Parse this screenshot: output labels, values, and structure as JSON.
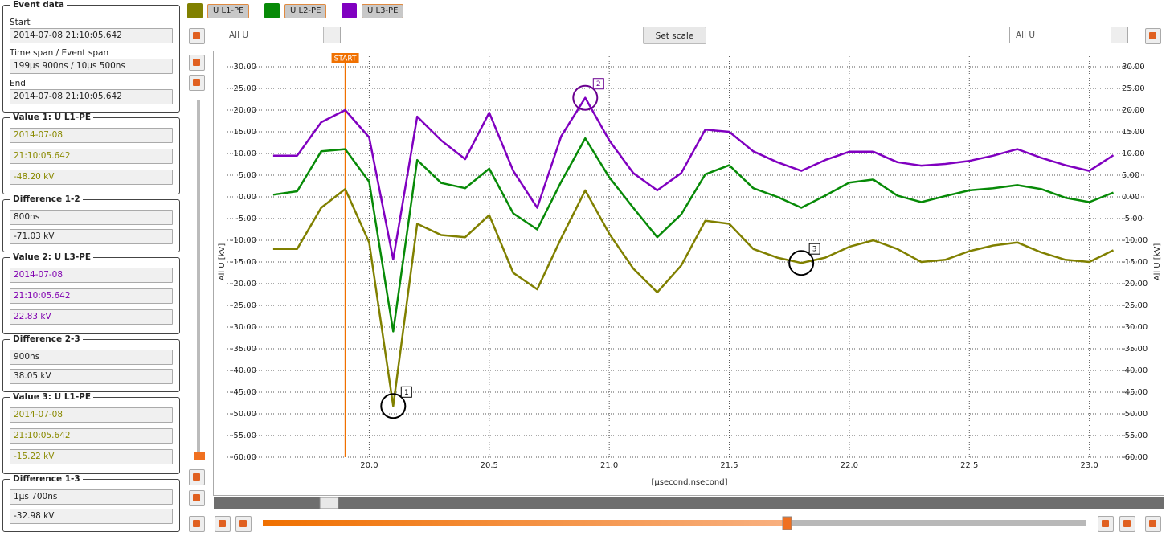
{
  "panel": {
    "groups": [
      {
        "title": "Event data",
        "fields": [
          {
            "label": "Start",
            "value": "2014-07-08 21:10:05.642"
          },
          {
            "label": "Time span / Event span",
            "value": "199µs 900ns / 10µs 500ns"
          },
          {
            "label": "End",
            "value": "2014-07-08 21:10:05.642"
          }
        ]
      },
      {
        "title": "Value 1: U L1-PE",
        "color": "#8a8a00",
        "fields": [
          {
            "value": "2014-07-08"
          },
          {
            "value": "21:10:05.642"
          },
          {
            "value": "-48.20 kV"
          }
        ]
      },
      {
        "title": "Difference 1-2",
        "fields": [
          {
            "value": "800ns"
          },
          {
            "value": "-71.03 kV"
          }
        ]
      },
      {
        "title": "Value 2: U L3-PE",
        "color": "#8000b0",
        "fields": [
          {
            "value": "2014-07-08"
          },
          {
            "value": "21:10:05.642"
          },
          {
            "value": "22.83 kV"
          }
        ]
      },
      {
        "title": "Difference 2-3",
        "fields": [
          {
            "value": "900ns"
          },
          {
            "value": "38.05 kV"
          }
        ]
      },
      {
        "title": "Value 3: U L1-PE",
        "color": "#8a8a00",
        "fields": [
          {
            "value": "2014-07-08"
          },
          {
            "value": "21:10:05.642"
          },
          {
            "value": "-15.22 kV"
          }
        ]
      },
      {
        "title": "Difference 1-3",
        "fields": [
          {
            "value": "1µs 700ns"
          },
          {
            "value": "-32.98 kV"
          }
        ]
      }
    ]
  },
  "toolbar": {
    "left_select": "All U",
    "set_scale": "Set scale",
    "right_select": "All U"
  },
  "chart_data": {
    "type": "line",
    "x_label": "[µsecond.nsecond]",
    "y_label": "All U [kV]",
    "x": [
      19.6,
      19.7,
      19.8,
      19.9,
      20.0,
      20.1,
      20.2,
      20.3,
      20.4,
      20.5,
      20.6,
      20.7,
      20.8,
      20.9,
      21.0,
      21.1,
      21.2,
      21.3,
      21.4,
      21.5,
      21.6,
      21.7,
      21.8,
      21.9,
      22.0,
      22.1,
      22.2,
      22.3,
      22.4,
      22.5,
      22.6,
      22.7,
      22.8,
      22.9,
      23.0,
      23.1
    ],
    "series": [
      {
        "name": "U L1-PE",
        "color": "#808000",
        "values": [
          -12,
          -12,
          -2.5,
          1.8,
          -10.5,
          -48.2,
          -6.2,
          -8.8,
          -9.3,
          -4.2,
          -17.5,
          -21.3,
          -9.5,
          1.5,
          -8.5,
          -16.5,
          -22,
          -15.8,
          -5.5,
          -6.2,
          -12,
          -14,
          -15.22,
          -14,
          -11.5,
          -10,
          -12,
          -15,
          -14.5,
          -12.5,
          -11.2,
          -10.5,
          -12.8,
          -14.5,
          -15,
          -12.3
        ]
      },
      {
        "name": "U L2-PE",
        "color": "#078a07",
        "values": [
          0.5,
          1.3,
          10.5,
          11,
          3.5,
          -31,
          8.5,
          3.2,
          2,
          6.5,
          -3.8,
          -7.5,
          3.5,
          13.5,
          4.5,
          -2.5,
          -9.3,
          -4,
          5.2,
          7.3,
          2,
          0,
          -2.5,
          0.3,
          3.3,
          4,
          0.3,
          -1.2,
          0.2,
          1.5,
          2,
          2.7,
          1.8,
          -0.2,
          -1.2,
          1
        ]
      },
      {
        "name": "U L3-PE",
        "color": "#8000c0",
        "values": [
          9.5,
          9.5,
          17.2,
          20,
          13.7,
          -14.4,
          18.5,
          13,
          8.7,
          19.4,
          6,
          -2.5,
          14,
          22.83,
          13,
          5.5,
          1.5,
          5.5,
          15.5,
          15,
          10.5,
          8,
          6,
          8.5,
          10.4,
          10.4,
          8,
          7.2,
          7.6,
          8.3,
          9.5,
          11,
          9,
          7.3,
          6,
          9.6
        ]
      }
    ],
    "markers": [
      {
        "label": "1",
        "x": 20.1,
        "y": -48.2,
        "color": "#000000"
      },
      {
        "label": "2",
        "x": 20.9,
        "y": 22.83,
        "color": "#6a0090"
      },
      {
        "label": "3",
        "x": 21.8,
        "y": -15.22,
        "color": "#000000"
      }
    ],
    "start": {
      "label": "START",
      "x": 19.9,
      "color": "#f07000"
    },
    "xlim": [
      19.55,
      23.115
    ],
    "ylim": [
      -60,
      30
    ],
    "xticks": [
      {
        "value": 20,
        "label": "20.0"
      },
      {
        "value": 20.5,
        "label": "20.5"
      },
      {
        "value": 21,
        "label": "21.0"
      },
      {
        "value": 21.5,
        "label": "21.5"
      },
      {
        "value": 22,
        "label": "22.0"
      },
      {
        "value": 22.5,
        "label": "22.5"
      },
      {
        "value": 23,
        "label": "23.0"
      }
    ],
    "yticks": [
      {
        "value": 30,
        "label": "30.00"
      },
      {
        "value": 25,
        "label": "25.00"
      },
      {
        "value": 20,
        "label": "20.00"
      },
      {
        "value": 15,
        "label": "15.00"
      },
      {
        "value": 10,
        "label": "10.00"
      },
      {
        "value": 5,
        "label": "5.00"
      },
      {
        "value": 0,
        "label": "0.00"
      },
      {
        "value": -5,
        "label": "-5.00"
      },
      {
        "value": -10,
        "label": "-10.00"
      },
      {
        "value": -15,
        "label": "-15.00"
      },
      {
        "value": -20,
        "label": "-20.00"
      },
      {
        "value": -25,
        "label": "-25.00"
      },
      {
        "value": -30,
        "label": "-30.00"
      },
      {
        "value": -35,
        "label": "-35.00"
      },
      {
        "value": -40,
        "label": "-40.00"
      },
      {
        "value": -45,
        "label": "-45.00"
      },
      {
        "value": -50,
        "label": "-50.00"
      },
      {
        "value": -55,
        "label": "-55.00"
      },
      {
        "value": -60,
        "label": "-60.00"
      }
    ],
    "grid": true
  }
}
